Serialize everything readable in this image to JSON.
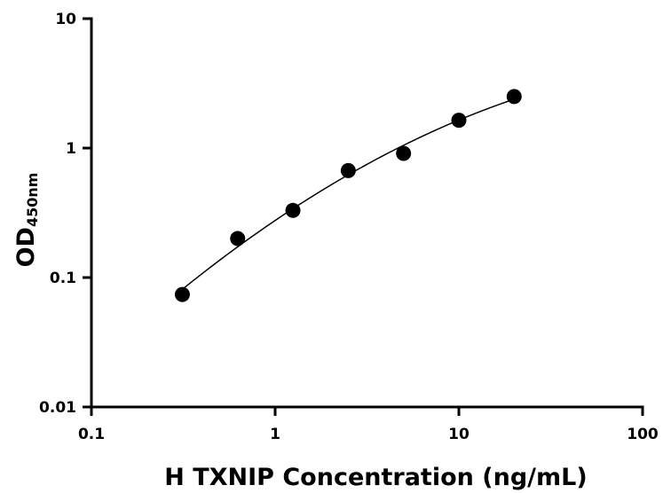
{
  "chart_data": {
    "type": "scatter",
    "xlabel": "H TXNIP Concentration (ng/mL)",
    "ylabel": "OD",
    "ylabel_subscript": "450nm",
    "x_scale": "log",
    "y_scale": "log",
    "xlim": [
      0.1,
      100
    ],
    "ylim": [
      0.01,
      10
    ],
    "x_ticks": [
      {
        "value": 0.1,
        "label": "0.1"
      },
      {
        "value": 1,
        "label": "1"
      },
      {
        "value": 10,
        "label": "10"
      },
      {
        "value": 100,
        "label": "100"
      }
    ],
    "y_ticks": [
      {
        "value": 0.01,
        "label": "0.01"
      },
      {
        "value": 0.1,
        "label": "0.1"
      },
      {
        "value": 1,
        "label": "1"
      },
      {
        "value": 10,
        "label": "10"
      }
    ],
    "grid": false,
    "legend": "none",
    "series": [
      {
        "x": [
          0.3125,
          0.625,
          1.25,
          2.5,
          5,
          10,
          20
        ],
        "y": [
          0.074,
          0.2,
          0.33,
          0.67,
          0.91,
          1.64,
          2.5
        ],
        "marker": "circle",
        "color": "#000000",
        "fit_line": true
      }
    ]
  }
}
